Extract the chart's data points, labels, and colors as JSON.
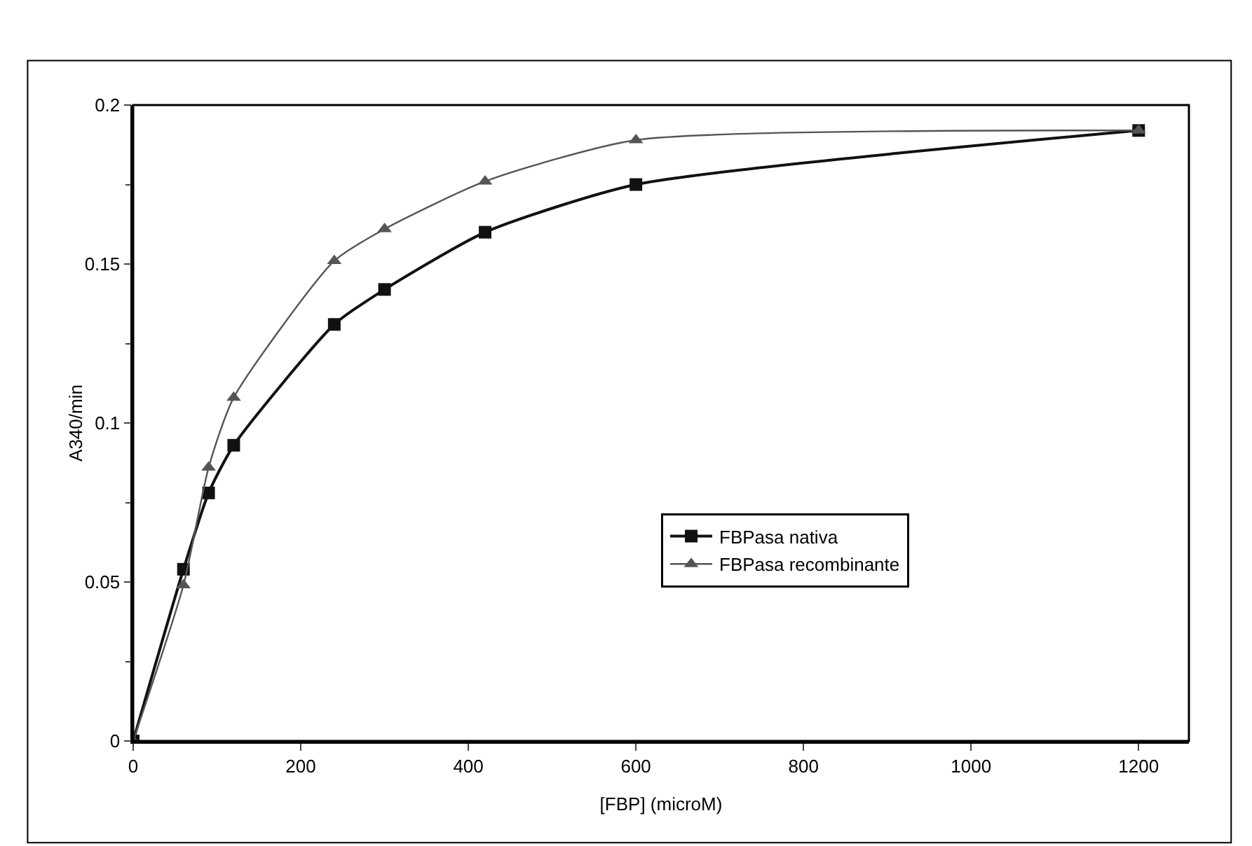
{
  "chart_data": {
    "type": "line",
    "xlabel": "[FBP] (microM)",
    "ylabel": "A340/min",
    "x": [
      0,
      60,
      90,
      120,
      240,
      300,
      420,
      600,
      1200
    ],
    "series": [
      {
        "name": "FBPasa nativa",
        "color": "#111111",
        "marker": "square",
        "values": [
          0,
          0.054,
          0.078,
          0.093,
          0.131,
          0.142,
          0.16,
          0.175,
          0.192
        ]
      },
      {
        "name": "FBPasa recombinante",
        "color": "#555555",
        "marker": "triangle",
        "values": [
          0,
          0.049,
          0.086,
          0.108,
          0.151,
          0.161,
          0.176,
          0.189,
          0.192
        ]
      }
    ],
    "xlim": [
      0,
      1260
    ],
    "xticks": [
      0,
      200,
      400,
      600,
      800,
      1000,
      1200
    ],
    "ylim": [
      0,
      0.2
    ],
    "yticks": [
      0,
      0.05,
      0.1,
      0.15,
      0.2
    ],
    "grid": false,
    "legend": "right",
    "line_style": "solid"
  }
}
